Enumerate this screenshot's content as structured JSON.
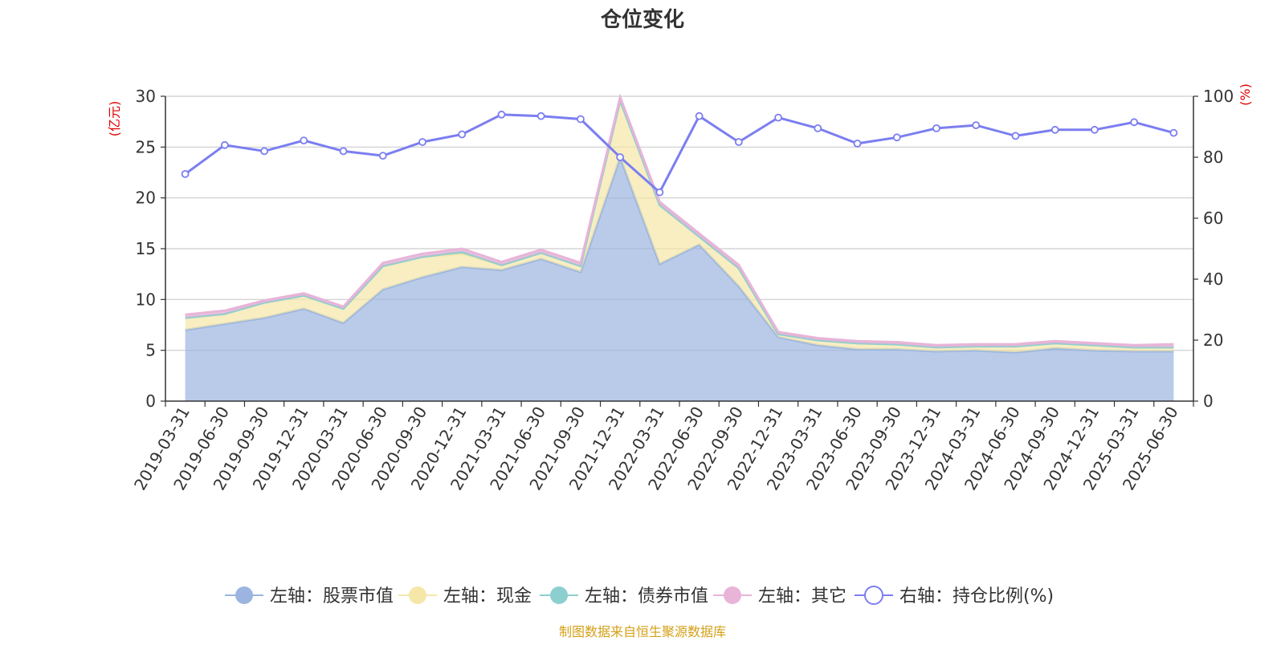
{
  "chart_data": {
    "type": "area",
    "title": "仓位变化",
    "left_axis_unit": "(亿元)",
    "right_axis_unit": "(%)",
    "ylim_left": [
      0,
      30
    ],
    "yticks_left": [
      0,
      5,
      10,
      15,
      20,
      25,
      30
    ],
    "ylim_right": [
      0,
      100
    ],
    "yticks_right": [
      0,
      20,
      40,
      60,
      80,
      100
    ],
    "grid": true,
    "legend_position": "bottom",
    "x": [
      "2019-03-31",
      "2019-06-30",
      "2019-09-30",
      "2019-12-31",
      "2020-03-31",
      "2020-06-30",
      "2020-09-30",
      "2020-12-31",
      "2021-03-31",
      "2021-06-30",
      "2021-09-30",
      "2021-12-31",
      "2022-03-31",
      "2022-06-30",
      "2022-09-30",
      "2022-12-31",
      "2023-03-31",
      "2023-06-30",
      "2023-09-30",
      "2023-12-31",
      "2024-03-31",
      "2024-06-30",
      "2024-09-30",
      "2024-12-31",
      "2025-03-31",
      "2025-06-30"
    ],
    "series": [
      {
        "name": "左轴：股票市值",
        "axis": "left",
        "kind": "stacked-area",
        "color": "#9bb5e0",
        "values": [
          7.0,
          7.6,
          8.2,
          9.1,
          7.7,
          11.0,
          12.2,
          13.2,
          12.9,
          14.0,
          12.7,
          24.0,
          13.5,
          15.4,
          11.3,
          6.3,
          5.5,
          5.1,
          5.1,
          4.9,
          5.0,
          4.8,
          5.2,
          5.0,
          4.9,
          4.9
        ]
      },
      {
        "name": "左轴：现金",
        "axis": "left",
        "kind": "stacked-area",
        "color": "#f5e7a8",
        "values": [
          1.2,
          1.0,
          1.5,
          1.3,
          1.4,
          2.3,
          2.0,
          1.3,
          0.5,
          0.6,
          0.6,
          5.6,
          5.8,
          0.8,
          1.8,
          0.3,
          0.5,
          0.6,
          0.5,
          0.4,
          0.4,
          0.6,
          0.5,
          0.5,
          0.4,
          0.4
        ]
      },
      {
        "name": "左轴：债券市值",
        "axis": "left",
        "kind": "stacked-area",
        "color": "#8dcfcf",
        "values": [
          0,
          0,
          0,
          0,
          0,
          0,
          0,
          0.2,
          0,
          0,
          0,
          0,
          0,
          0,
          0,
          0,
          0,
          0,
          0,
          0,
          0,
          0,
          0,
          0,
          0,
          0
        ]
      },
      {
        "name": "左轴：其它",
        "axis": "left",
        "kind": "stacked-area",
        "color": "#e8b4d8",
        "values": [
          0.3,
          0.3,
          0.2,
          0.2,
          0.2,
          0.3,
          0.3,
          0.3,
          0.3,
          0.3,
          0.3,
          0.3,
          0.3,
          0.3,
          0.3,
          0.2,
          0.2,
          0.2,
          0.2,
          0.2,
          0.2,
          0.2,
          0.2,
          0.2,
          0.2,
          0.3
        ]
      },
      {
        "name": "右轴：持仓比例(%)",
        "axis": "right",
        "kind": "line",
        "color": "#7b7ef0",
        "values": [
          74.5,
          84.0,
          82.0,
          85.5,
          82.0,
          80.5,
          85.0,
          87.5,
          94.0,
          93.5,
          92.5,
          80.0,
          68.5,
          93.5,
          85.0,
          93.0,
          89.5,
          84.5,
          86.5,
          89.5,
          90.5,
          87.0,
          89.0,
          89.0,
          91.5,
          88.0
        ]
      }
    ]
  },
  "legend_items": [
    "左轴：股票市值",
    "左轴：现金",
    "左轴：债券市值",
    "左轴：其它",
    "右轴：持仓比例(%)"
  ],
  "source_note": "制图数据来自恒生聚源数据库",
  "colors": {
    "axis": "#333333",
    "grid": "#cccccc",
    "unit_label": "#e00000",
    "source": "#d4a017",
    "title": "#333333"
  }
}
